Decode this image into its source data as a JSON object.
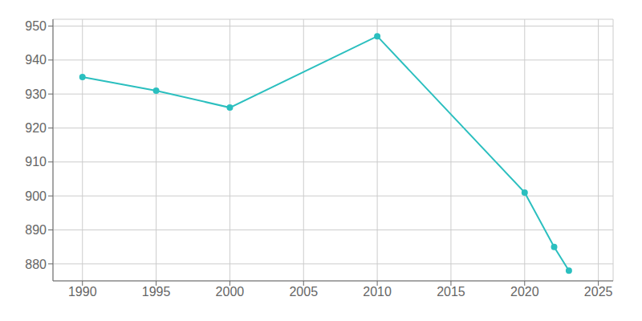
{
  "chart_data": {
    "type": "line",
    "x": [
      1990,
      1995,
      2000,
      2010,
      2020,
      2022,
      2023
    ],
    "values": [
      935,
      931,
      926,
      947,
      901,
      885,
      878
    ],
    "color": "#2BBFBF",
    "marker": "circle",
    "xlim": [
      1988,
      2026
    ],
    "ylim": [
      875,
      952
    ],
    "xticks": [
      1990,
      1995,
      2000,
      2005,
      2010,
      2015,
      2020,
      2025
    ],
    "yticks": [
      880,
      890,
      900,
      910,
      920,
      930,
      940,
      950
    ],
    "grid": true
  }
}
